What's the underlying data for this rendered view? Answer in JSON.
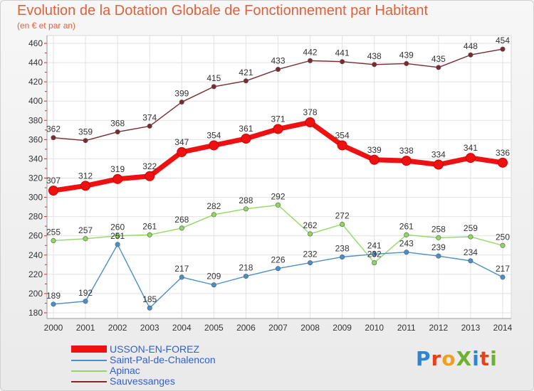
{
  "title": "Evolution de la Dotation Globale de Fonctionnement par Habitant",
  "subtitle": "(en € et par an)",
  "logo": {
    "text": "ProXiti",
    "letters": [
      {
        "ch": "P",
        "color": "#2e86d0"
      },
      {
        "ch": "r",
        "color": "#e8401c"
      },
      {
        "ch": "o",
        "color": "#f0a020"
      },
      {
        "ch": "X",
        "color": "#70b030"
      },
      {
        "ch": "i",
        "color": "#2e86d0"
      },
      {
        "ch": "t",
        "color": "#e8401c"
      },
      {
        "ch": "i",
        "color": "#70b030"
      }
    ]
  },
  "chart_data": {
    "type": "line",
    "x": [
      2000,
      2001,
      2002,
      2003,
      2004,
      2005,
      2006,
      2007,
      2008,
      2009,
      2010,
      2011,
      2012,
      2013,
      2014
    ],
    "ylim": [
      180,
      460
    ],
    "yticks": [
      180,
      200,
      220,
      240,
      260,
      280,
      300,
      320,
      340,
      360,
      380,
      400,
      420,
      440,
      460
    ],
    "grid": true,
    "legend_position": "bottom-left",
    "series": [
      {
        "name": "USSON-EN-FOREZ",
        "color": "#ee1111",
        "values": [
          307,
          312,
          319,
          322,
          347,
          354,
          361,
          371,
          378,
          354,
          339,
          338,
          334,
          341,
          336
        ]
      },
      {
        "name": "Saint-Pal-de-Chalencon",
        "color": "#4a90c8",
        "values": [
          189,
          192,
          251,
          185,
          217,
          209,
          218,
          226,
          232,
          238,
          241,
          243,
          239,
          234,
          217
        ]
      },
      {
        "name": "Apinac",
        "color": "#90d860",
        "values": [
          255,
          257,
          260,
          261,
          268,
          282,
          288,
          292,
          262,
          272,
          232,
          261,
          258,
          259,
          250
        ]
      },
      {
        "name": "Sauvessanges",
        "color": "#7a2a30",
        "values": [
          362,
          359,
          368,
          374,
          399,
          415,
          421,
          433,
          442,
          441,
          438,
          439,
          435,
          448,
          454
        ]
      }
    ]
  }
}
